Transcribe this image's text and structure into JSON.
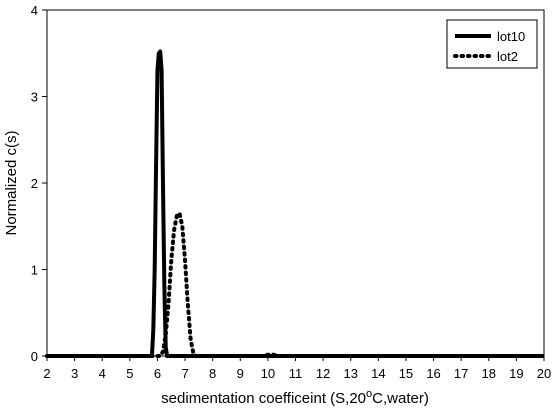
{
  "chart_data": {
    "type": "line",
    "xlabel_parts": {
      "prefix": "sedimentation coefficeint (S,20",
      "superscript": "o",
      "suffix": "C,water)"
    },
    "ylabel": "Normalized c(s)",
    "xlim": [
      2,
      20
    ],
    "ylim": [
      0,
      4
    ],
    "xticks": [
      2,
      3,
      4,
      5,
      6,
      7,
      8,
      9,
      10,
      11,
      12,
      13,
      14,
      15,
      16,
      17,
      18,
      19,
      20
    ],
    "yticks": [
      0,
      1,
      2,
      3,
      4
    ],
    "grid": false,
    "legend_position": "top-right",
    "series": [
      {
        "name": "lot10",
        "style": "solid",
        "color": "#000000",
        "points": [
          [
            2.0,
            0.0
          ],
          [
            5.8,
            0.0
          ],
          [
            5.85,
            0.3
          ],
          [
            5.9,
            1.0
          ],
          [
            5.95,
            2.2
          ],
          [
            6.0,
            3.3
          ],
          [
            6.05,
            3.5
          ],
          [
            6.1,
            3.52
          ],
          [
            6.15,
            3.3
          ],
          [
            6.2,
            2.0
          ],
          [
            6.25,
            0.8
          ],
          [
            6.3,
            0.1
          ],
          [
            6.35,
            0.0
          ],
          [
            20.0,
            0.0
          ]
        ]
      },
      {
        "name": "lot2",
        "style": "dotted",
        "color": "#000000",
        "points": [
          [
            2.0,
            0.0
          ],
          [
            6.1,
            0.0
          ],
          [
            6.2,
            0.05
          ],
          [
            6.3,
            0.25
          ],
          [
            6.4,
            0.6
          ],
          [
            6.5,
            1.1
          ],
          [
            6.6,
            1.45
          ],
          [
            6.7,
            1.62
          ],
          [
            6.8,
            1.65
          ],
          [
            6.9,
            1.5
          ],
          [
            7.0,
            1.1
          ],
          [
            7.1,
            0.6
          ],
          [
            7.2,
            0.2
          ],
          [
            7.3,
            0.03
          ],
          [
            7.4,
            0.0
          ],
          [
            9.8,
            0.0
          ],
          [
            10.0,
            0.015
          ],
          [
            10.2,
            0.015
          ],
          [
            10.4,
            0.0
          ],
          [
            20.0,
            0.0
          ]
        ]
      }
    ]
  }
}
